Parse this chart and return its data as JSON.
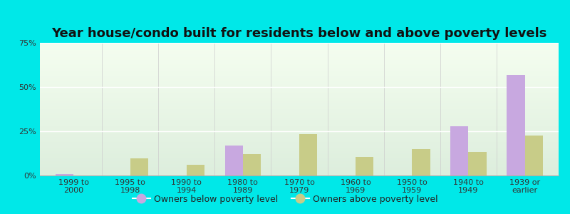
{
  "title": "Year house/condo built for residents below and above poverty levels",
  "categories": [
    "1999 to\n2000",
    "1995 to\n1998",
    "1990 to\n1994",
    "1980 to\n1989",
    "1970 to\n1979",
    "1960 to\n1969",
    "1950 to\n1959",
    "1940 to\n1949",
    "1939 or\nearlier"
  ],
  "below_poverty": [
    0.8,
    0.0,
    0.0,
    17.0,
    0.0,
    0.0,
    0.0,
    28.0,
    57.0
  ],
  "above_poverty": [
    0.0,
    9.5,
    6.0,
    12.0,
    23.5,
    10.5,
    15.0,
    13.5,
    22.5
  ],
  "below_color": "#c8a8e0",
  "above_color": "#c8cc88",
  "background_outer": "#00e8e8",
  "background_inner_top": "#ddeedd",
  "background_inner_bottom": "#f5fef0",
  "ylim": [
    0,
    75
  ],
  "yticks": [
    0,
    25,
    50,
    75
  ],
  "ytick_labels": [
    "0%",
    "25%",
    "50%",
    "75%"
  ],
  "title_fontsize": 13,
  "tick_fontsize": 8,
  "legend_fontsize": 9,
  "bar_width": 0.32
}
